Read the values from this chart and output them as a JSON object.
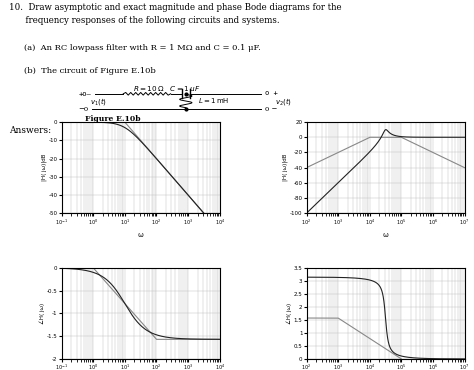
{
  "title_text": "10.  Draw asymptotic and exact magnitude and phase Bode diagrams for the\n      frequency responses of the following circuits and systems.",
  "part_a_text": "(a)  An RC lowpass filter with R = 1 MΩ and C = 0.1 μF.",
  "part_b_text": "(b)  The circuit of Figure E.10b",
  "figure_label": "Figure E.10b",
  "answers_label": "Answers:",
  "plot1_ylabel": "|H( jω)|dB",
  "plot1_xlabel": "ω",
  "plot1_ylim": [
    -50,
    0
  ],
  "plot1_yticks": [
    0,
    -10,
    -20,
    -30,
    -40,
    -50
  ],
  "plot2_ylabel": "|H( jω)|dB",
  "plot2_xlabel": "ω",
  "plot2_ylim": [
    -100,
    20
  ],
  "plot2_yticks": [
    20,
    0,
    -20,
    -40,
    -60,
    -80,
    -100
  ],
  "plot3_ylabel": "∠H( jω)",
  "plot3_xlabel": "ω",
  "plot3_ylim": [
    -2,
    0
  ],
  "plot3_yticks": [
    0,
    -0.5,
    -1,
    -1.5,
    -2
  ],
  "plot4_ylabel": "∠H( jω)",
  "plot4_xlabel": "ω",
  "plot4_ylim": [
    0,
    3.5
  ],
  "plot4_yticks": [
    0,
    0.5,
    1,
    1.5,
    2,
    2.5,
    3,
    3.5
  ],
  "line_color_exact": "#222222",
  "line_color_asymp": "#888888"
}
